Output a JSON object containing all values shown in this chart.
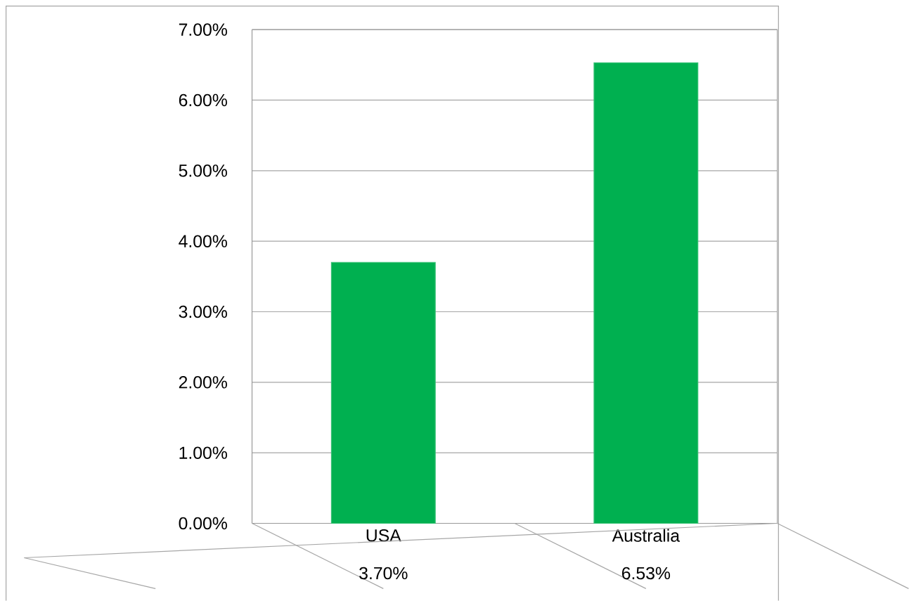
{
  "chart_data": {
    "type": "bar",
    "categories": [
      "USA",
      "Australia"
    ],
    "values": [
      3.7,
      6.53
    ],
    "color": "#00b050",
    "value_labels": [
      "3.70%",
      "6.53%"
    ],
    "ylim": [
      0,
      7
    ],
    "yticks": [
      {
        "value": 0,
        "label": "0.00%"
      },
      {
        "value": 1,
        "label": "1.00%"
      },
      {
        "value": 2,
        "label": "2.00%"
      },
      {
        "value": 3,
        "label": "3.00%"
      },
      {
        "value": 4,
        "label": "4.00%"
      },
      {
        "value": 5,
        "label": "5.00%"
      },
      {
        "value": 6,
        "label": "6.00%"
      },
      {
        "value": 7,
        "label": "7.00%"
      }
    ],
    "grid": "y"
  }
}
